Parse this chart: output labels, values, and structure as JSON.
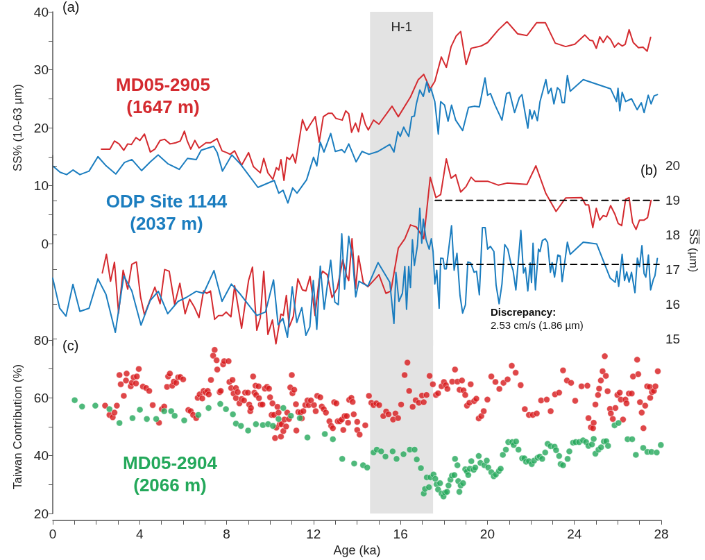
{
  "chart_data": [
    {
      "type": "line",
      "ylabel": "SS% (10-63 µm)",
      "xlim": [
        0,
        28
      ],
      "ylim": [
        0,
        40
      ],
      "yticks": [
        0,
        {
          "value": 5,
          "label": null
        },
        10,
        {
          "value": 15,
          "label": null
        },
        20,
        {
          "value": 25,
          "label": null
        },
        30,
        {
          "value": 35,
          "label": null
        },
        40
      ],
      "tick_labels": "y",
      "marker": "none",
      "annotations": [
        "(a)"
      ],
      "bands": [
        {
          "axis": "x",
          "from": 14.6,
          "to": 17.5,
          "label": "H-1",
          "color": "#e3e3e3"
        }
      ],
      "series": [
        {
          "name": "MD05-2905\n(1647 m)",
          "color": "#d42a2f",
          "x": [
            2.24,
            2.63,
            2.84,
            3.05,
            3.27,
            3.45,
            3.62,
            3.83,
            4.01,
            4.22,
            4.49,
            4.7,
            4.94,
            5.15,
            5.4,
            5.66,
            5.87,
            6.06,
            6.19,
            6.35,
            6.54,
            6.73,
            7.05,
            7.26,
            7.56,
            7.79,
            8.0,
            8.16,
            8.37,
            8.69,
            9.01,
            9.23,
            9.55,
            9.71,
            9.9,
            10.13,
            10.29,
            10.4,
            10.5,
            10.64,
            10.77,
            10.9,
            11.04,
            11.17,
            11.49,
            11.68,
            11.84,
            12.08,
            12.26,
            12.45,
            12.69,
            12.85,
            13.03,
            13.32,
            13.48,
            13.62,
            13.75,
            13.93,
            14.07,
            14.23,
            14.39,
            14.52,
            14.76,
            15.01,
            15.61,
            15.9,
            16.46,
            16.82,
            17.07,
            17.37,
            17.58,
            17.88,
            18.11,
            18.33,
            18.56,
            18.77,
            19.02,
            19.25,
            19.71,
            20.01,
            20.51,
            20.9,
            21.39,
            21.82,
            22.26,
            22.67,
            23.12,
            23.6,
            24.02,
            24.48,
            24.71,
            24.85,
            25.01,
            25.17,
            25.33,
            25.51,
            25.67,
            25.85,
            26.02,
            26.2,
            26.34,
            26.52,
            26.71,
            26.95,
            27.16,
            27.35,
            27.51
          ],
          "values": [
            16.3,
            16.3,
            17.7,
            17.2,
            16.1,
            17.2,
            17.1,
            18.3,
            17.8,
            18.9,
            15.8,
            16.3,
            17.8,
            18.0,
            17.2,
            17.4,
            17.7,
            19.4,
            17.7,
            16.3,
            17.8,
            16.5,
            17.4,
            17.4,
            18.1,
            16.0,
            15.7,
            15.4,
            16.0,
            13.5,
            15.7,
            13.3,
            12.2,
            14.7,
            12.2,
            11.1,
            13.1,
            12.7,
            14.5,
            10.9,
            14.9,
            14.5,
            15.4,
            13.9,
            21.4,
            19.5,
            20.5,
            21.9,
            17.5,
            21.9,
            22.5,
            22.5,
            21.6,
            21.3,
            22.9,
            22.4,
            19.2,
            20.8,
            19.3,
            22.5,
            20.5,
            19.6,
            21.3,
            20.6,
            23.7,
            21.9,
            25.3,
            28.3,
            29.2,
            26.7,
            28.0,
            32.2,
            30.4,
            34.0,
            35.8,
            36.6,
            30.9,
            33.7,
            34.1,
            34.7,
            36.9,
            38.3,
            36.2,
            35.9,
            38.1,
            38.1,
            34.6,
            34.0,
            34.4,
            36.0,
            35.1,
            35.0,
            33.7,
            35.7,
            34.7,
            35.8,
            35.2,
            33.9,
            34.6,
            34.1,
            34.4,
            36.9,
            34.7,
            33.8,
            33.9,
            33.2,
            35.6
          ]
        },
        {
          "name": "ODP Site 1144\n(2037 m)",
          "color": "#1b7dbf",
          "x": [
            0,
            0.34,
            0.64,
            0.93,
            1.25,
            1.67,
            2.08,
            2.46,
            2.9,
            3.3,
            3.64,
            4.09,
            4.49,
            4.85,
            5.29,
            5.82,
            6.2,
            6.6,
            6.83,
            7.4,
            7.57,
            7.81,
            8.24,
            8.64,
            9.44,
            10.19,
            10.4,
            10.6,
            10.82,
            11.04,
            11.24,
            11.68,
            12.0,
            12.15,
            12.31,
            12.48,
            12.79,
            13.0,
            13.3,
            13.43,
            13.62,
            13.96,
            14.23,
            14.55,
            14.97,
            15.51,
            15.7,
            15.88,
            15.99,
            16.15,
            16.25,
            16.38,
            16.52,
            16.64,
            16.73,
            16.89,
            17.05,
            17.21,
            17.32,
            17.4,
            17.58,
            17.74,
            17.85,
            18.03,
            18.19,
            18.35,
            18.54,
            18.86,
            19.13,
            19.39,
            19.63,
            19.89,
            20.01,
            20.14,
            20.35,
            20.67,
            20.88,
            21.02,
            21.25,
            21.47,
            21.59,
            21.73,
            21.86,
            21.95,
            22.05,
            22.16,
            22.3,
            22.42,
            22.69,
            22.8,
            22.93,
            23.06,
            23.22,
            23.33,
            23.44,
            23.54,
            23.68,
            23.81,
            24.41,
            25.67,
            25.94,
            26.01,
            26.09,
            26.2,
            26.36,
            26.63,
            26.89,
            27.08,
            27.21,
            27.4,
            27.53,
            27.67,
            27.82
          ],
          "values": [
            13.4,
            12.3,
            11.9,
            12.7,
            11.9,
            12.5,
            15.0,
            13.4,
            12.0,
            14.0,
            14.5,
            12.6,
            14.1,
            15.3,
            13.8,
            12.8,
            14.7,
            14.5,
            16.1,
            16.8,
            15.7,
            12.5,
            15.3,
            13.7,
            9.7,
            10.9,
            8.7,
            9.2,
            7.0,
            9.6,
            8.7,
            11.0,
            14.9,
            13.4,
            17.5,
            15.8,
            19.0,
            15.9,
            16.2,
            15.7,
            17.2,
            14.1,
            15.9,
            15.4,
            15.9,
            17.1,
            15.8,
            19.3,
            18.5,
            20.1,
            19.3,
            18.5,
            21.9,
            22.0,
            24.1,
            26.5,
            25.4,
            27.9,
            26.1,
            26.8,
            24.5,
            18.9,
            24.5,
            23.9,
            21.1,
            23.9,
            21.3,
            19.5,
            23.5,
            23.7,
            23.6,
            28.6,
            25.6,
            25.9,
            23.9,
            21.3,
            25.9,
            26.1,
            22.6,
            25.2,
            25.7,
            22.6,
            19.9,
            23.1,
            21.5,
            22.9,
            21.2,
            24.5,
            28.3,
            25.9,
            26.8,
            24.1,
            26.9,
            26.5,
            24.3,
            24.3,
            29.0,
            26.3,
            28.3,
            26.7,
            24.5,
            26.8,
            22.9,
            26.1,
            24.5,
            25.0,
            23.1,
            24.3,
            22.6,
            25.6,
            24.1,
            25.5,
            25.7
          ]
        }
      ]
    },
    {
      "type": "line",
      "ylabel": "S̅S̅ (µm)",
      "xlim": [
        0,
        28
      ],
      "ylim": [
        14.8,
        20.3
      ],
      "yticks": [
        15,
        16,
        17,
        18,
        19,
        20
      ],
      "tick_labels": "y",
      "marker": "none",
      "annotations": [
        "(b)",
        "Discrepancy:",
        "2.53 cm/s (1.86 µm)"
      ],
      "bands": [
        {
          "axis": "x",
          "from": 14.6,
          "to": 17.5,
          "color": "#e3e3e3"
        }
      ],
      "series": [
        {
          "color": "#d42a2f",
          "x": [
            2.28,
            2.47,
            2.66,
            2.84,
            3.03,
            3.24,
            3.45,
            3.64,
            3.85,
            4.04,
            4.22,
            4.47,
            4.7,
            4.94,
            5.15,
            5.36,
            5.61,
            5.85,
            6.09,
            6.3,
            6.51,
            6.73,
            6.94,
            7.08,
            7.26,
            7.45,
            7.63,
            7.81,
            7.98,
            8.2,
            8.37,
            8.69,
            9.01,
            9.19,
            9.39,
            9.55,
            9.71,
            9.9,
            10.11,
            10.27,
            10.5,
            10.61,
            10.75,
            10.88,
            11.07,
            11.28,
            11.49,
            11.65,
            11.84,
            12.07,
            12.26,
            12.42,
            12.63,
            12.85,
            13.09,
            13.35,
            13.52,
            13.62,
            13.77,
            13.94,
            14.07,
            14.29,
            14.5,
            15.01,
            15.33,
            15.56,
            15.9,
            16.2,
            16.46,
            16.73,
            17.07,
            17.37,
            17.63,
            17.85,
            18.11,
            18.33,
            18.54,
            18.77,
            19.02,
            19.25,
            19.44,
            20.03,
            20.51,
            20.9,
            21.82,
            22.23,
            22.69,
            23.16,
            23.6,
            24.34,
            24.52,
            24.66,
            24.85,
            25.01,
            25.17,
            25.33,
            25.48,
            25.67,
            25.86,
            26.02,
            26.18,
            26.36,
            26.52,
            26.68,
            26.84,
            27.0,
            27.21,
            27.37,
            27.53
          ],
          "values": [
            16.9,
            17.44,
            16.66,
            17.21,
            15.74,
            16.98,
            16.43,
            17.15,
            17.22,
            16.21,
            15.69,
            16.11,
            16.49,
            16.01,
            17.0,
            16.95,
            15.99,
            16.6,
            15.72,
            16.14,
            15.92,
            15.61,
            16.38,
            16.31,
            16.38,
            15.56,
            15.67,
            15.67,
            15.77,
            15.63,
            16.53,
            15.3,
            16.68,
            17.07,
            15.24,
            15.61,
            16.95,
            15.12,
            15.54,
            14.85,
            15.71,
            15.67,
            16.25,
            15.34,
            15.64,
            16.73,
            16.41,
            16.38,
            16.8,
            15.67,
            16.72,
            16.95,
            16.85,
            16.19,
            16.45,
            17.29,
            16.82,
            16.68,
            17.89,
            16.45,
            17.39,
            16.62,
            16.5,
            16.85,
            16.31,
            16.38,
            17.62,
            17.89,
            18.29,
            18.23,
            17.89,
            19.67,
            19.08,
            19.17,
            20.2,
            19.64,
            19.74,
            19.24,
            19.4,
            19.67,
            19.55,
            19.55,
            19.44,
            19.5,
            19.46,
            20.0,
            19.2,
            18.68,
            19.07,
            19.08,
            18.87,
            18.87,
            18.21,
            18.77,
            18.43,
            18.56,
            18.53,
            18.85,
            18.61,
            18.33,
            18.27,
            19.03,
            19.08,
            18.36,
            18.16,
            18.43,
            18.43,
            18.5,
            19.0
          ]
        },
        {
          "color": "#1b7dbf",
          "x": [
            0,
            0.32,
            0.61,
            0.93,
            1.25,
            1.67,
            2.08,
            2.45,
            2.88,
            3.27,
            3.64,
            4.06,
            4.49,
            4.86,
            5.29,
            5.77,
            6.14,
            6.6,
            6.94,
            7.42,
            7.79,
            8.22,
            8.64,
            9.39,
            9.79,
            10.16,
            10.37,
            10.59,
            10.8,
            11.02,
            11.23,
            11.46,
            11.65,
            11.83,
            11.99,
            12.15,
            12.31,
            12.49,
            12.79,
            12.98,
            13.14,
            13.3,
            13.43,
            13.62,
            13.8,
            13.94,
            14.09,
            14.5,
            14.97,
            15.51,
            15.7,
            15.79,
            15.93,
            16.09,
            16.2,
            16.28,
            16.38,
            16.46,
            16.55,
            16.64,
            16.78,
            16.89,
            16.98,
            17.05,
            17.18,
            17.32,
            17.42,
            17.5,
            17.58,
            17.67,
            17.78,
            17.85,
            17.96,
            18.03,
            18.11,
            18.35,
            18.47,
            18.6,
            18.74,
            18.86,
            18.99,
            19.1,
            19.23,
            19.39,
            19.5,
            19.63,
            19.77,
            19.9,
            20.01,
            20.14,
            20.3,
            20.4,
            20.54,
            20.67,
            20.8,
            20.94,
            21.1,
            21.18,
            21.31,
            21.54,
            21.66,
            21.75,
            21.86,
            21.97,
            22.03,
            22.1,
            22.21,
            22.35,
            22.42,
            22.53,
            22.66,
            22.77,
            22.9,
            22.98,
            23.09,
            23.24,
            23.35,
            23.44,
            23.68,
            23.81,
            24.41,
            25.03,
            25.65,
            25.88,
            25.96,
            26.04,
            26.2,
            26.31,
            26.41,
            26.52,
            26.63,
            26.79,
            26.9,
            27.0,
            27.11,
            27.21,
            27.29,
            27.41,
            27.51,
            27.64,
            27.71,
            27.82
          ],
          "values": [
            16.75,
            15.88,
            15.65,
            16.57,
            15.79,
            15.88,
            16.73,
            16.28,
            15.18,
            16.82,
            16.38,
            15.39,
            16.11,
            16.37,
            15.72,
            16.08,
            16.19,
            16.37,
            16.31,
            16.97,
            16.08,
            16.58,
            16.28,
            15.67,
            15.77,
            16.7,
            15.4,
            15.59,
            15.04,
            16.5,
            15.47,
            15.9,
            15.1,
            15.34,
            16.68,
            15.27,
            17.1,
            15.85,
            17.27,
            16.06,
            15.98,
            18.03,
            16.43,
            17.96,
            17.29,
            16.21,
            16.66,
            16.52,
            17.2,
            16.63,
            15.44,
            16.92,
            16.08,
            16.31,
            17.09,
            15.85,
            17.09,
            16.48,
            17.86,
            17.12,
            17.69,
            18.77,
            17.76,
            18.46,
            17.86,
            17.59,
            17.89,
            17.52,
            16.58,
            16.98,
            15.88,
            17.33,
            17.32,
            17.02,
            17.02,
            18.27,
            16.98,
            17.47,
            16.25,
            15.74,
            15.98,
            17.22,
            17.19,
            16.92,
            16.95,
            16.27,
            18.21,
            18.21,
            17.59,
            17.67,
            17.52,
            16.55,
            16.01,
            16.58,
            17.72,
            17.59,
            17.12,
            16.98,
            16.41,
            18.13,
            16.9,
            17.05,
            16.38,
            17.19,
            16.62,
            17.76,
            16.41,
            17.59,
            17.52,
            17.84,
            17.89,
            17.78,
            16.92,
            17.2,
            16.78,
            17.42,
            17.39,
            16.65,
            17.79,
            17.44,
            17.79,
            17.74,
            16.75,
            16.63,
            16.95,
            16.51,
            17.44,
            16.68,
            16.93,
            16.63,
            16.92,
            16.33,
            17.33,
            17.08,
            17.69,
            16.88,
            16.78,
            17.42,
            16.41,
            16.72,
            16.82,
            17.32
          ]
        },
        {
          "type": "line",
          "color": "#000000",
          "line_style": "dashed",
          "x": [
            17.6,
            27.9
          ],
          "values": [
            19.0,
            19.0
          ]
        },
        {
          "type": "line",
          "color": "#000000",
          "line_style": "dashed",
          "x": [
            17.6,
            27.9
          ],
          "values": [
            17.15,
            17.15
          ]
        }
      ]
    },
    {
      "type": "scatter",
      "xlabel": "Age (ka)",
      "ylabel": "Taiwan Contribution (%)",
      "xlim": [
        0,
        28
      ],
      "ylim": [
        20,
        80
      ],
      "xticks": [
        0,
        {
          "value": 1,
          "label": null
        },
        {
          "value": 2,
          "label": null
        },
        {
          "value": 3,
          "label": null
        },
        4,
        {
          "value": 5,
          "label": null
        },
        {
          "value": 6,
          "label": null
        },
        {
          "value": 7,
          "label": null
        },
        8,
        {
          "value": 9,
          "label": null
        },
        {
          "value": 10,
          "label": null
        },
        {
          "value": 11,
          "label": null
        },
        12,
        {
          "value": 13,
          "label": null
        },
        {
          "value": 14,
          "label": null
        },
        {
          "value": 15,
          "label": null
        },
        16,
        {
          "value": 17,
          "label": null
        },
        {
          "value": 18,
          "label": null
        },
        {
          "value": 19,
          "label": null
        },
        20,
        {
          "value": 21,
          "label": null
        },
        {
          "value": 22,
          "label": null
        },
        {
          "value": 23,
          "label": null
        },
        24,
        {
          "value": 25,
          "label": null
        },
        {
          "value": 26,
          "label": null
        },
        {
          "value": 27,
          "label": null
        },
        28
      ],
      "yticks": [
        20,
        {
          "value": 30,
          "label": null
        },
        40,
        {
          "value": 50,
          "label": null
        },
        60,
        {
          "value": 70,
          "label": null
        },
        80
      ],
      "marker": "circle",
      "annotations": [
        "(c)"
      ],
      "bands": [
        {
          "axis": "x",
          "from": 14.6,
          "to": 17.5,
          "color": "#e3e3e3"
        }
      ],
      "series": [
        {
          "color": "#d7191c",
          "x": [
            2.41,
            2.61,
            2.76,
            2.84,
            2.95,
            3.07,
            3.13,
            3.27,
            3.37,
            3.4,
            3.59,
            3.64,
            3.72,
            3.83,
            3.87,
            3.96,
            4.15,
            4.3,
            4.44,
            4.6,
            4.89,
            5.02,
            5.13,
            5.26,
            5.31,
            5.39,
            5.5,
            5.57,
            5.68,
            5.77,
            5.87,
            6.0,
            6.24,
            6.35,
            6.46,
            6.6,
            6.67,
            6.76,
            6.88,
            6.94,
            7.04,
            7.13,
            7.18,
            7.28,
            7.38,
            7.45,
            7.54,
            7.57,
            7.68,
            7.73,
            7.84,
            7.89,
            8.09,
            8.13,
            8.27,
            8.21,
            8.32,
            8.43,
            8.43,
            8.51,
            8.59,
            8.69,
            8.8,
            8.85,
            8.98,
            9.04,
            9.09,
            9.12,
            9.22,
            9.28,
            9.36,
            9.33,
            9.47,
            9.49,
            9.57,
            9.65,
            9.76,
            9.86,
            9.95,
            10.0,
            10.07,
            10.11,
            10.18,
            10.23,
            10.29,
            10.34,
            10.39,
            10.45,
            10.5,
            10.53,
            10.61,
            10.66,
            10.74,
            10.79,
            10.87,
            10.93,
            11.0,
            11.03,
            11.11,
            11.19,
            11.21,
            11.3,
            11.4,
            11.46,
            11.53,
            11.62,
            11.72,
            11.78,
            11.88,
            12.02,
            12.1,
            12.17,
            12.31,
            12.38,
            12.47,
            12.57,
            12.73,
            12.81,
            12.89,
            12.95,
            13.05,
            13.11,
            13.21,
            13.3,
            13.37,
            13.43,
            13.53,
            13.59,
            13.64,
            13.74,
            13.8,
            13.85,
            14.01,
            14.01,
            14.12,
            14.38,
            14.55,
            14.66,
            14.76,
            14.89,
            15.02,
            15.21,
            15.34,
            15.45,
            15.66,
            15.77,
            15.89,
            16.03,
            16.19,
            16.32,
            16.4,
            16.56,
            16.7,
            16.85,
            16.99,
            17.07,
            17.2,
            17.34,
            17.49,
            17.63,
            17.73,
            17.89,
            18.0,
            18.09,
            18.16,
            18.38,
            18.51,
            18.62,
            18.72,
            18.83,
            18.9,
            18.98,
            19.06,
            19.17,
            19.23,
            19.39,
            19.49,
            19.6,
            19.72,
            19.83,
            20.0,
            20.18,
            20.37,
            20.55,
            20.74,
            20.93,
            21.12,
            21.3,
            21.53,
            21.72,
            21.91,
            22.09,
            22.27,
            22.47,
            22.73,
            22.91,
            23.11,
            23.3,
            23.48,
            23.66,
            23.85,
            24.04,
            24.33,
            24.6,
            24.65,
            24.76,
            24.86,
            24.89,
            24.97,
            25.09,
            25.14,
            25.22,
            25.3,
            25.4,
            25.45,
            25.53,
            25.64,
            25.68,
            25.77,
            25.89,
            25.98,
            26.09,
            26.14,
            26.24,
            26.35,
            26.4,
            26.51,
            26.64,
            26.7,
            26.89,
            26.94,
            27.02,
            27.1,
            27.18,
            27.26,
            27.35,
            27.47,
            27.49,
            27.57,
            27.66,
            27.73,
            27.84
          ],
          "values": [
            57.3,
            54.1,
            53.3,
            54.9,
            57.3,
            67.9,
            64.7,
            60.7,
            66.0,
            68.4,
            64.0,
            65.2,
            67.1,
            65.0,
            67.4,
            70.0,
            63.9,
            63.4,
            62.4,
            57.5,
            51.4,
            56.1,
            57.0,
            63.8,
            67.4,
            68.4,
            64.2,
            65.6,
            65.2,
            67.1,
            67.2,
            66.4,
            55.8,
            55.4,
            54.1,
            53.0,
            60.0,
            61.2,
            59.8,
            62.4,
            61.8,
            62.4,
            61.2,
            66.2,
            74.6,
            76.6,
            73.0,
            69.8,
            62.0,
            62.4,
            71.6,
            72.7,
            72.7,
            65.5,
            66.2,
            63.4,
            61.5,
            63.4,
            59.9,
            62.0,
            58.1,
            59.6,
            59.1,
            61.8,
            61.8,
            57.7,
            55.4,
            56.5,
            67.4,
            61.8,
            61.0,
            64.2,
            64.0,
            59.9,
            57.7,
            57.7,
            63.2,
            63.8,
            63.2,
            60.2,
            54.1,
            58.1,
            54.1,
            46.1,
            49.7,
            56.9,
            54.9,
            50.9,
            46.6,
            50.9,
            48.5,
            52.5,
            50.1,
            54.9,
            52.7,
            63.6,
            67.9,
            61.6,
            62.8,
            57.8,
            48.7,
            55.1,
            54.9,
            52.9,
            55.4,
            57.5,
            59.1,
            57.5,
            59.1,
            57.5,
            55.4,
            60.7,
            60.2,
            57.0,
            56.1,
            54.9,
            51.9,
            50.3,
            49.5,
            58.5,
            58.1,
            51.9,
            51.9,
            52.5,
            48.9,
            53.7,
            53.7,
            51.4,
            59.3,
            60.0,
            58.6,
            54.3,
            51.7,
            48.9,
            47.3,
            50.5,
            60.7,
            58.3,
            57.5,
            58.1,
            57.5,
            53.7,
            55.3,
            54.3,
            52.5,
            54.6,
            53.0,
            57.7,
            67.9,
            72.2,
            62.4,
            56.9,
            59.2,
            58.3,
            60.8,
            58.5,
            61.0,
            67.6,
            64.7,
            61.0,
            61.6,
            64.0,
            65.5,
            64.4,
            63.1,
            65.6,
            69.8,
            65.6,
            62.8,
            66.0,
            62.6,
            61.0,
            57.3,
            58.3,
            64.7,
            58.9,
            59.7,
            52.9,
            53.7,
            55.4,
            59.4,
            67.4,
            65.5,
            63.1,
            65.2,
            66.4,
            71.1,
            68.7,
            64.4,
            56.1,
            54.1,
            54.1,
            54.6,
            59.1,
            59.4,
            55.4,
            61.2,
            61.8,
            69.5,
            66.0,
            65.2,
            59.0,
            64.0,
            64.2,
            53.0,
            49.8,
            49.5,
            51.4,
            57.7,
            61.0,
            63.2,
            66.0,
            69.2,
            74.4,
            67.6,
            62.3,
            56.2,
            54.6,
            52.7,
            56.5,
            61.0,
            61.8,
            59.4,
            52.5,
            59.4,
            58.1,
            61.5,
            61.5,
            67.4,
            73.2,
            68.2,
            58.5,
            54.9,
            49.5,
            57.3,
            64.0,
            63.8,
            60.0,
            62.0,
            62.4,
            64.0,
            69.2
          ]
        },
        {
          "name": "MD05-2904\n(2066 m)",
          "color": "#23a85a",
          "x": [
            1.01,
            1.35,
            1.96,
            2.61,
            3.07,
            3.67,
            4.01,
            4.33,
            4.76,
            5.13,
            5.45,
            5.61,
            6.05,
            6.7,
            7.17,
            7.71,
            7.97,
            8.29,
            8.43,
            8.66,
            8.99,
            9.35,
            9.67,
            9.91,
            10.13,
            10.39,
            10.61,
            10.96,
            11.37,
            11.72,
            12.52,
            12.89,
            13.32,
            13.87,
            14.28,
            14.47,
            14.76,
            14.91,
            15.11,
            15.31,
            15.64,
            15.82,
            16.14,
            16.43,
            16.65,
            16.75,
            16.94,
            17.07,
            17.13,
            17.21,
            17.31,
            17.38,
            17.52,
            17.6,
            17.66,
            17.73,
            17.82,
            17.89,
            17.98,
            18.05,
            18.14,
            18.21,
            18.3,
            18.37,
            18.48,
            18.51,
            18.62,
            18.66,
            18.71,
            18.77,
            18.88,
            18.98,
            19.06,
            19.12,
            19.19,
            19.26,
            19.37,
            19.44,
            19.6,
            19.68,
            19.86,
            19.97,
            20.04,
            20.18,
            20.29,
            20.39,
            20.53,
            20.61,
            20.71,
            20.85,
            20.96,
            21.14,
            21.21,
            21.32,
            21.43,
            21.6,
            21.7,
            21.78,
            21.91,
            22.04,
            22.15,
            22.31,
            22.41,
            22.52,
            22.66,
            22.77,
            22.91,
            23.09,
            23.16,
            23.3,
            23.37,
            23.48,
            23.69,
            23.77,
            23.94,
            24.06,
            24.22,
            24.4,
            24.54,
            24.65,
            24.81,
            24.89,
            24.97,
            25.11,
            25.23,
            25.36,
            25.47,
            25.55,
            25.85,
            26.03,
            26.45,
            26.66,
            26.83,
            27.17,
            27.36,
            27.55,
            27.79,
            27.98
          ],
          "values": [
            59.2,
            57.0,
            57.3,
            56.1,
            51.3,
            53.0,
            55.9,
            52.7,
            52.7,
            55.4,
            55.4,
            53.8,
            52.2,
            54.1,
            56.5,
            57.9,
            56.1,
            54.3,
            51.1,
            50.3,
            48.7,
            50.9,
            50.6,
            50.9,
            50.3,
            52.7,
            56.5,
            53.8,
            53.0,
            46.3,
            47.5,
            45.7,
            38.9,
            37.3,
            36.7,
            35.9,
            41.1,
            42.1,
            41.5,
            39.7,
            41.5,
            38.9,
            40.5,
            42.1,
            42.1,
            38.7,
            35.7,
            26.9,
            28.5,
            32.5,
            29.1,
            32.5,
            33.5,
            32.0,
            30.1,
            28.3,
            30.5,
            26.9,
            25.9,
            27.2,
            27.5,
            29.7,
            31.7,
            33.1,
            33.3,
            38.9,
            36.7,
            31.2,
            27.5,
            29.7,
            30.5,
            35.3,
            34.5,
            33.3,
            35.5,
            38.1,
            35.1,
            35.9,
            39.9,
            37.5,
            36.7,
            38.3,
            35.9,
            34.3,
            32.9,
            33.5,
            34.7,
            35.5,
            40.3,
            42.1,
            44.7,
            44.7,
            43.7,
            44.9,
            42.1,
            39.1,
            39.1,
            37.9,
            38.1,
            37.1,
            38.3,
            39.3,
            39.7,
            38.9,
            41.1,
            44.1,
            43.3,
            43.1,
            41.9,
            39.9,
            37.1,
            36.7,
            38.9,
            41.5,
            44.5,
            44.7,
            44.7,
            45.3,
            44.7,
            43.4,
            43.9,
            45.8,
            40.7,
            42.1,
            42.9,
            44.9,
            45.0,
            43.4,
            50.5,
            51.3,
            45.7,
            45.7,
            40.3,
            42.7,
            41.3,
            41.3,
            41.1,
            43.7
          ]
        }
      ]
    }
  ]
}
